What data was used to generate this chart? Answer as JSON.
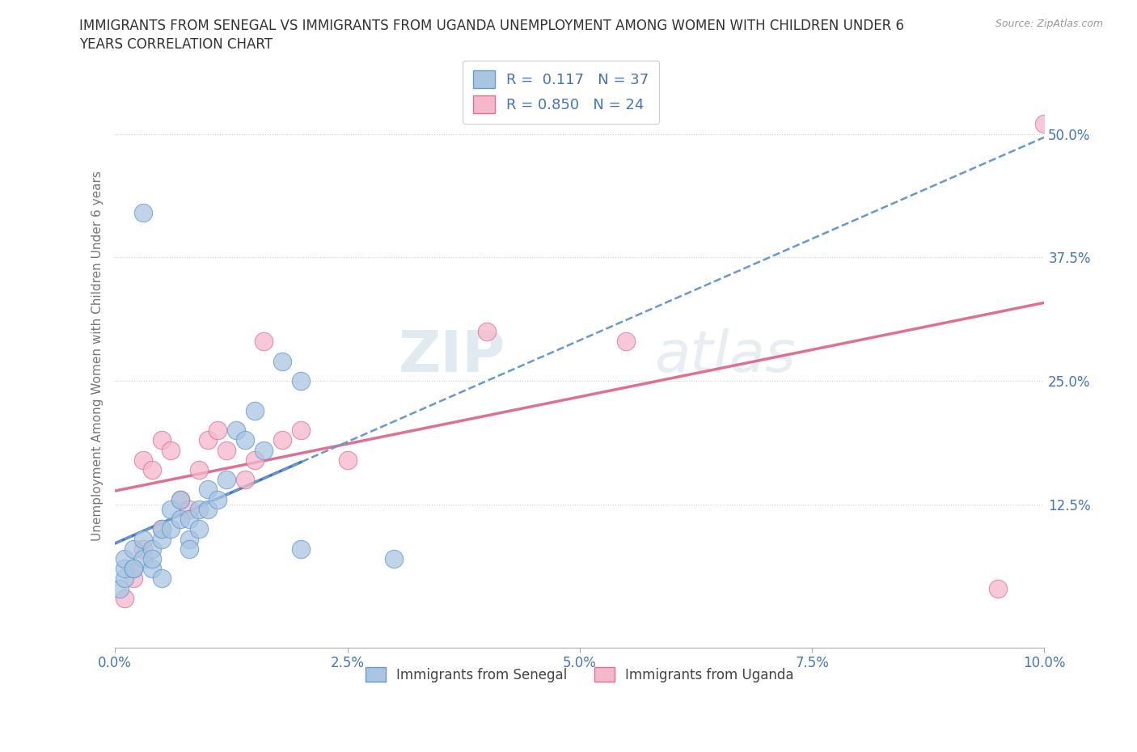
{
  "title_line1": "IMMIGRANTS FROM SENEGAL VS IMMIGRANTS FROM UGANDA UNEMPLOYMENT AMONG WOMEN WITH CHILDREN UNDER 6",
  "title_line2": "YEARS CORRELATION CHART",
  "source_text": "Source: ZipAtlas.com",
  "ylabel": "Unemployment Among Women with Children Under 6 years",
  "xlim": [
    0.0,
    0.1
  ],
  "ylim": [
    -0.02,
    0.57
  ],
  "xtick_vals": [
    0.0,
    0.025,
    0.05,
    0.075,
    0.1
  ],
  "xtick_labels": [
    "0.0%",
    "2.5%",
    "5.0%",
    "7.5%",
    "10.0%"
  ],
  "ytick_vals": [
    0.125,
    0.25,
    0.375,
    0.5
  ],
  "ytick_labels": [
    "12.5%",
    "25.0%",
    "37.5%",
    "50.0%"
  ],
  "senegal_color": "#aac5e2",
  "uganda_color": "#f5b8cb",
  "senegal_edge": "#6699cc",
  "uganda_edge": "#e07090",
  "trend_senegal_solid_color": "#4472c4",
  "trend_senegal_dash_color": "#6699cc",
  "trend_uganda_color": "#e07090",
  "R_senegal": 0.117,
  "N_senegal": 37,
  "R_uganda": 0.85,
  "N_uganda": 24,
  "legend_label_senegal": "Immigrants from Senegal",
  "legend_label_uganda": "Immigrants from Uganda",
  "watermark_zip": "ZIP",
  "watermark_atlas": "atlas",
  "background_color": "#ffffff",
  "senegal_x": [
    0.0005,
    0.001,
    0.001,
    0.001,
    0.002,
    0.002,
    0.003,
    0.003,
    0.004,
    0.004,
    0.005,
    0.005,
    0.006,
    0.006,
    0.007,
    0.007,
    0.008,
    0.008,
    0.009,
    0.009,
    0.01,
    0.01,
    0.011,
    0.012,
    0.013,
    0.014,
    0.015,
    0.016,
    0.018,
    0.02,
    0.003,
    0.005,
    0.02,
    0.004,
    0.002,
    0.03,
    0.008
  ],
  "senegal_y": [
    0.04,
    0.05,
    0.06,
    0.07,
    0.06,
    0.08,
    0.07,
    0.09,
    0.06,
    0.08,
    0.09,
    0.1,
    0.1,
    0.12,
    0.11,
    0.13,
    0.09,
    0.11,
    0.1,
    0.12,
    0.12,
    0.14,
    0.13,
    0.15,
    0.2,
    0.19,
    0.22,
    0.18,
    0.27,
    0.25,
    0.42,
    0.05,
    0.08,
    0.07,
    0.06,
    0.07,
    0.08
  ],
  "uganda_x": [
    0.001,
    0.002,
    0.003,
    0.003,
    0.004,
    0.005,
    0.005,
    0.006,
    0.007,
    0.008,
    0.009,
    0.01,
    0.011,
    0.012,
    0.014,
    0.015,
    0.016,
    0.018,
    0.02,
    0.025,
    0.04,
    0.055,
    0.095,
    0.1
  ],
  "uganda_y": [
    0.03,
    0.05,
    0.08,
    0.17,
    0.16,
    0.19,
    0.1,
    0.18,
    0.13,
    0.12,
    0.16,
    0.19,
    0.2,
    0.18,
    0.15,
    0.17,
    0.29,
    0.19,
    0.2,
    0.17,
    0.3,
    0.29,
    0.04,
    0.51
  ]
}
